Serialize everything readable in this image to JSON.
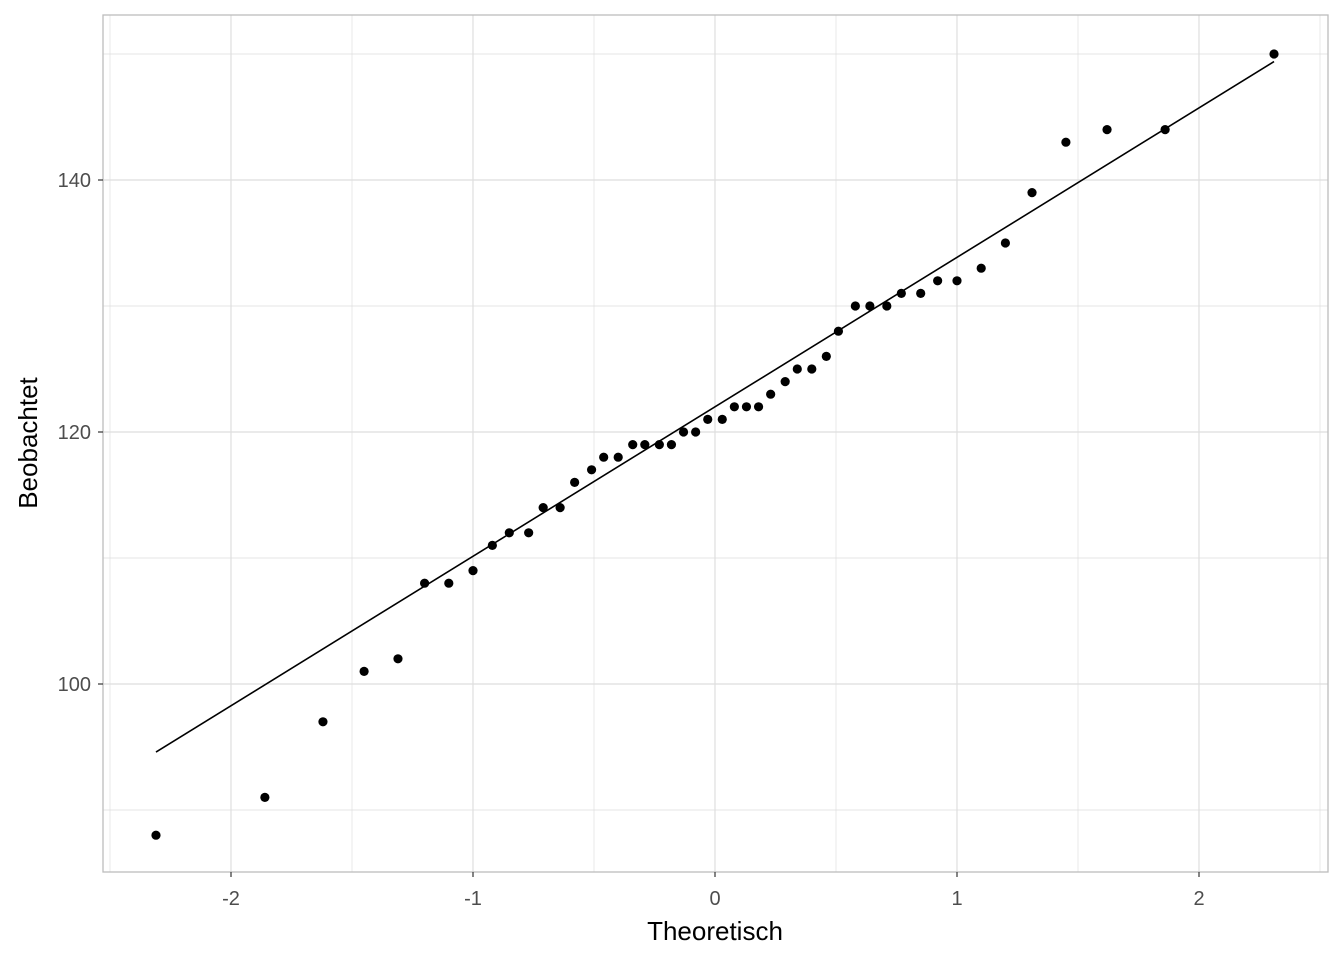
{
  "chart_data": {
    "type": "scatter",
    "title": "",
    "xlabel": "Theoretisch",
    "ylabel": "Beobachtet",
    "xlim": [
      -2.5,
      2.5
    ],
    "ylim": [
      85,
      150
    ],
    "x_ticks": [
      -2,
      -1,
      0,
      1,
      2
    ],
    "x_tick_labels": [
      "-2",
      "-1",
      "0",
      "1",
      "2"
    ],
    "y_ticks": [
      100,
      120,
      140
    ],
    "y_tick_labels": [
      "100",
      "120",
      "140"
    ],
    "grid": true,
    "legend": "none",
    "colors": {
      "points": "#000000",
      "line": "#000000",
      "grid": "#dedede",
      "border": "#bdbdbd"
    },
    "points": {
      "x": [
        -2.31,
        -1.86,
        -1.62,
        -1.45,
        -1.31,
        -1.2,
        -1.1,
        -1.0,
        -0.92,
        -0.85,
        -0.77,
        -0.71,
        -0.64,
        -0.58,
        -0.51,
        -0.46,
        -0.4,
        -0.34,
        -0.29,
        -0.23,
        -0.18,
        -0.13,
        -0.08,
        -0.03,
        0.03,
        0.08,
        0.13,
        0.18,
        0.23,
        0.29,
        0.34,
        0.4,
        0.46,
        0.51,
        0.58,
        0.64,
        0.71,
        0.77,
        0.85,
        0.92,
        1.0,
        1.1,
        1.2,
        1.31,
        1.45,
        1.62,
        1.86,
        2.31
      ],
      "y": [
        88,
        91,
        97,
        101,
        102,
        108,
        108,
        109,
        111,
        112,
        112,
        114,
        114,
        116,
        117,
        118,
        118,
        119,
        119,
        119,
        119,
        120,
        120,
        121,
        121,
        122,
        122,
        122,
        123,
        124,
        125,
        125,
        126,
        128,
        130,
        130,
        130,
        131,
        131,
        132,
        132,
        133,
        135,
        139,
        143,
        144,
        144,
        150
      ]
    },
    "reference_line": {
      "x": [
        -2.31,
        2.31
      ],
      "y": [
        94.6,
        149.4
      ]
    }
  }
}
